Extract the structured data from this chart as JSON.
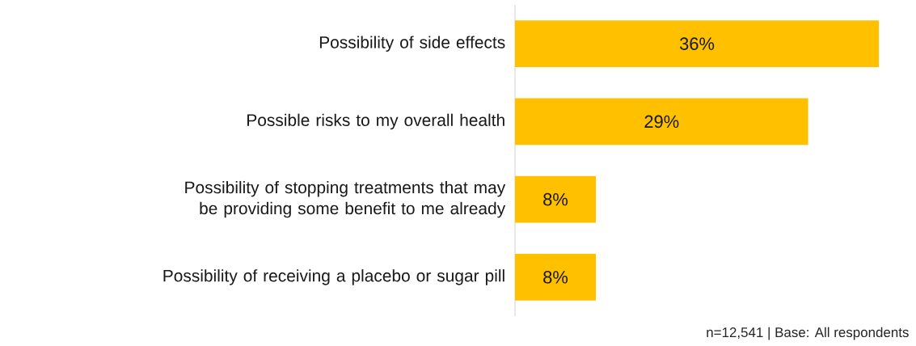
{
  "chart_data": {
    "type": "bar",
    "orientation": "horizontal",
    "categories": [
      "Possibility of side effects",
      "Possible risks to my overall health",
      "Possibility of stopping treatments that may be providing some benefit to me already",
      "Possibility of receiving a placebo or sugar pill"
    ],
    "values": [
      36,
      29,
      8,
      8
    ],
    "value_labels": [
      "36%",
      "29%",
      "8%",
      "8%"
    ],
    "color": "#ffc000",
    "annotations": [
      "n=12,541 | Base: All respondents"
    ]
  }
}
